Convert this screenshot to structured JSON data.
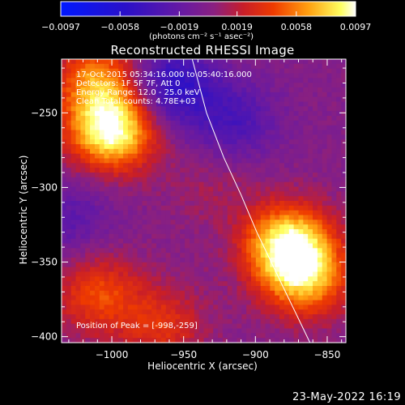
{
  "colorbar": {
    "ticks": [
      "-0.0097",
      "-0.0058",
      "-0.0019",
      "0.0019",
      "0.0058",
      "0.0097"
    ],
    "units": "(photons cm⁻² s⁻¹ asec⁻²)",
    "min": -0.0097,
    "max": 0.0097
  },
  "title": "Reconstructed RHESSI Image",
  "annotations": {
    "time": "17-Oct-2015 05:34:16.000 to 05:40:16.000",
    "detectors": "Detectors: 1F 5F 7F, Att 0",
    "energy": "Energy Range: 12.0 - 25.0 keV",
    "clean": "Clean    Total counts: 4.78E+03",
    "peak": "Position of Peak = [-998,-259]"
  },
  "footer_date": "23-May-2022 16:19",
  "chart_data": {
    "type": "heatmap",
    "title": "Reconstructed RHESSI Image",
    "xlabel": "Heliocentric X (arcsec)",
    "ylabel": "Heliocentric Y (arcsec)",
    "xlim": [
      -1035,
      -837
    ],
    "ylim": [
      -404,
      -214
    ],
    "xticks": [
      -1000,
      -950,
      -900,
      -850
    ],
    "yticks": [
      -250,
      -300,
      -350,
      -400
    ],
    "peak_position": [
      -998,
      -259
    ],
    "limb_curve": {
      "x": [
        -944,
        -934,
        -922,
        -910,
        -899,
        -889,
        -879,
        -870,
        -862
      ],
      "y": [
        -214,
        -250,
        -280,
        -305,
        -330,
        -350,
        -370,
        -388,
        -404
      ]
    },
    "sources": [
      {
        "x": -1000,
        "y": -262,
        "amp": 1.0
      },
      {
        "x": -1010,
        "y": -228,
        "amp": 0.6
      },
      {
        "x": -877,
        "y": -338,
        "amp": 0.95
      },
      {
        "x": -865,
        "y": -362,
        "amp": 0.65
      },
      {
        "x": -1010,
        "y": -372,
        "amp": 0.45
      },
      {
        "x": -965,
        "y": -392,
        "amp": 0.35
      },
      {
        "x": -930,
        "y": -300,
        "amp": 0.12
      }
    ],
    "negatives": [
      {
        "x": -958,
        "y": -232,
        "amp": -0.55
      },
      {
        "x": -915,
        "y": -255,
        "amp": -0.35
      },
      {
        "x": -1030,
        "y": -320,
        "amp": -0.25
      }
    ]
  }
}
